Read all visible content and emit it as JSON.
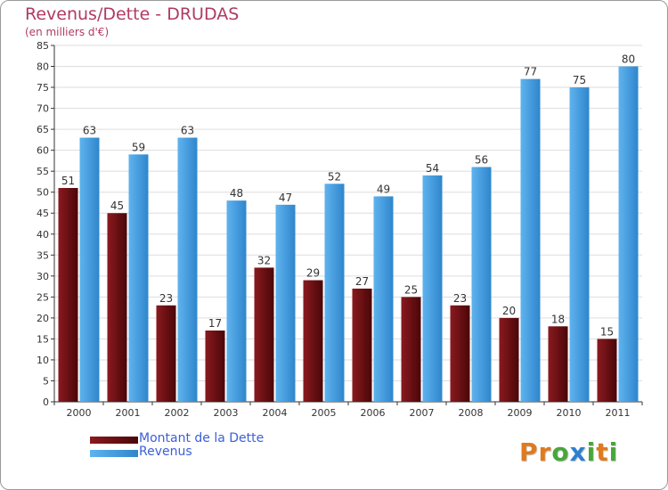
{
  "header": {
    "title": "Revenus/Dette - DRUDAS",
    "subtitle": "(en milliers d'€)"
  },
  "colors": {
    "title": "#b03a62",
    "dette": "#6e0f12",
    "revenus": "#3d9be0",
    "legend_text": "#3b5fd8",
    "axis": "#333333",
    "grid": "#dddddd"
  },
  "chart_data": {
    "type": "bar",
    "title": "Revenus/Dette - DRUDAS",
    "subtitle": "(en milliers d'€)",
    "categories": [
      "2000",
      "2001",
      "2002",
      "2003",
      "2004",
      "2005",
      "2006",
      "2007",
      "2008",
      "2009",
      "2010",
      "2011"
    ],
    "series": [
      {
        "name": "Montant de la Dette",
        "color": "#6e0f12",
        "values": [
          51,
          45,
          23,
          17,
          32,
          29,
          27,
          25,
          23,
          20,
          18,
          15
        ]
      },
      {
        "name": "Revenus",
        "color": "#3d9be0",
        "values": [
          63,
          59,
          63,
          48,
          47,
          52,
          49,
          54,
          56,
          77,
          75,
          80
        ]
      }
    ],
    "yticks": [
      0,
      5,
      10,
      15,
      20,
      25,
      30,
      35,
      40,
      45,
      50,
      55,
      60,
      65,
      70,
      75,
      80,
      85
    ],
    "ylim": [
      0,
      85
    ],
    "grid": true,
    "legend_position": "bottom-left",
    "data_labels": true
  },
  "legend": {
    "items": [
      {
        "label": "Montant de la Dette",
        "color": "#6e0f12"
      },
      {
        "label": "Revenus",
        "color": "#3d9be0"
      }
    ]
  },
  "logo": {
    "letters": [
      {
        "ch": "P",
        "color": "#e07a1f"
      },
      {
        "ch": "r",
        "color": "#e07a1f"
      },
      {
        "ch": "o",
        "color": "#49a63a"
      },
      {
        "ch": "x",
        "color": "#2f7fd0"
      },
      {
        "ch": "i",
        "color": "#49a63a"
      },
      {
        "ch": "t",
        "color": "#e07a1f"
      },
      {
        "ch": "i",
        "color": "#49a63a"
      }
    ]
  }
}
